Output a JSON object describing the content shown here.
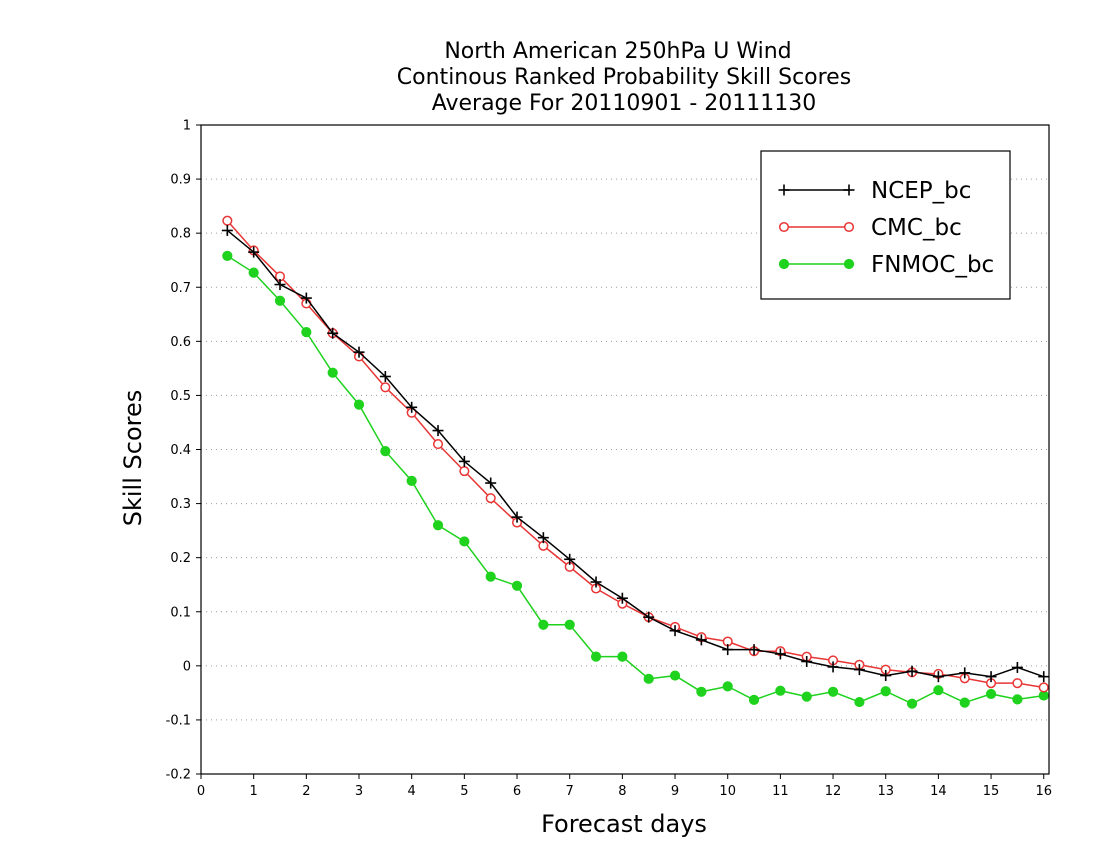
{
  "chart_data": {
    "type": "line",
    "title_lines": [
      "North American 250hPa U Wind",
      "Continous Ranked Probability Skill Scores",
      "Average For 20110901 - 20111130"
    ],
    "xlabel": "Forecast days",
    "ylabel": "Skill Scores",
    "xlim": [
      0,
      16.1
    ],
    "ylim": [
      -0.2,
      1
    ],
    "x_ticks": [
      0,
      1,
      2,
      3,
      4,
      5,
      6,
      7,
      8,
      9,
      10,
      11,
      12,
      13,
      14,
      15,
      16
    ],
    "x_tick_labels": [
      "0",
      "1",
      "2",
      "3",
      "4",
      "5",
      "6",
      "7",
      "8",
      "9",
      "10",
      "11",
      "12",
      "13",
      "14",
      "15",
      "16"
    ],
    "y_ticks": [
      -0.2,
      -0.1,
      0,
      0.1,
      0.2,
      0.3,
      0.4,
      0.5,
      0.6,
      0.7,
      0.8,
      0.9,
      1
    ],
    "y_tick_labels": [
      "-0.2",
      "-0.1",
      "0",
      "0.1",
      "0.2",
      "0.3",
      "0.4",
      "0.5",
      "0.6",
      "0.7",
      "0.8",
      "0.9",
      "1"
    ],
    "grid": "horizontal-dotted",
    "legend_position": "top-right",
    "x": [
      0.5,
      1,
      1.5,
      2,
      2.5,
      3,
      3.5,
      4,
      4.5,
      5,
      5.5,
      6,
      6.5,
      7,
      7.5,
      8,
      8.5,
      9,
      9.5,
      10,
      10.5,
      11,
      11.5,
      12,
      12.5,
      13,
      13.5,
      14,
      14.5,
      15,
      15.5,
      16
    ],
    "series": [
      {
        "name": "NCEP_bc",
        "color": "#000000",
        "marker": "plus",
        "values": [
          0.805,
          0.765,
          0.705,
          0.68,
          0.615,
          0.58,
          0.535,
          0.478,
          0.435,
          0.378,
          0.338,
          0.275,
          0.237,
          0.197,
          0.155,
          0.125,
          0.09,
          0.065,
          0.048,
          0.03,
          0.03,
          0.022,
          0.008,
          -0.002,
          -0.007,
          -0.018,
          -0.01,
          -0.02,
          -0.013,
          -0.02,
          -0.003,
          -0.02
        ]
      },
      {
        "name": "CMC_bc",
        "color": "#e83535",
        "marker": "open-circle",
        "values": [
          0.823,
          0.768,
          0.72,
          0.67,
          0.615,
          0.572,
          0.515,
          0.468,
          0.41,
          0.36,
          0.31,
          0.265,
          0.222,
          0.183,
          0.143,
          0.115,
          0.09,
          0.072,
          0.053,
          0.045,
          0.027,
          0.027,
          0.017,
          0.01,
          0.002,
          -0.007,
          -0.012,
          -0.015,
          -0.023,
          -0.032,
          -0.032,
          -0.04
        ]
      },
      {
        "name": "FNMOC_bc",
        "color": "#1ed21e",
        "marker": "filled-circle",
        "values": [
          0.758,
          0.727,
          0.675,
          0.617,
          0.542,
          0.483,
          0.397,
          0.342,
          0.26,
          0.23,
          0.165,
          0.148,
          0.076,
          0.076,
          0.017,
          0.017,
          -0.024,
          -0.018,
          -0.048,
          -0.038,
          -0.063,
          -0.046,
          -0.057,
          -0.048,
          -0.067,
          -0.047,
          -0.07,
          -0.045,
          -0.068,
          -0.052,
          -0.062,
          -0.055
        ]
      }
    ]
  }
}
